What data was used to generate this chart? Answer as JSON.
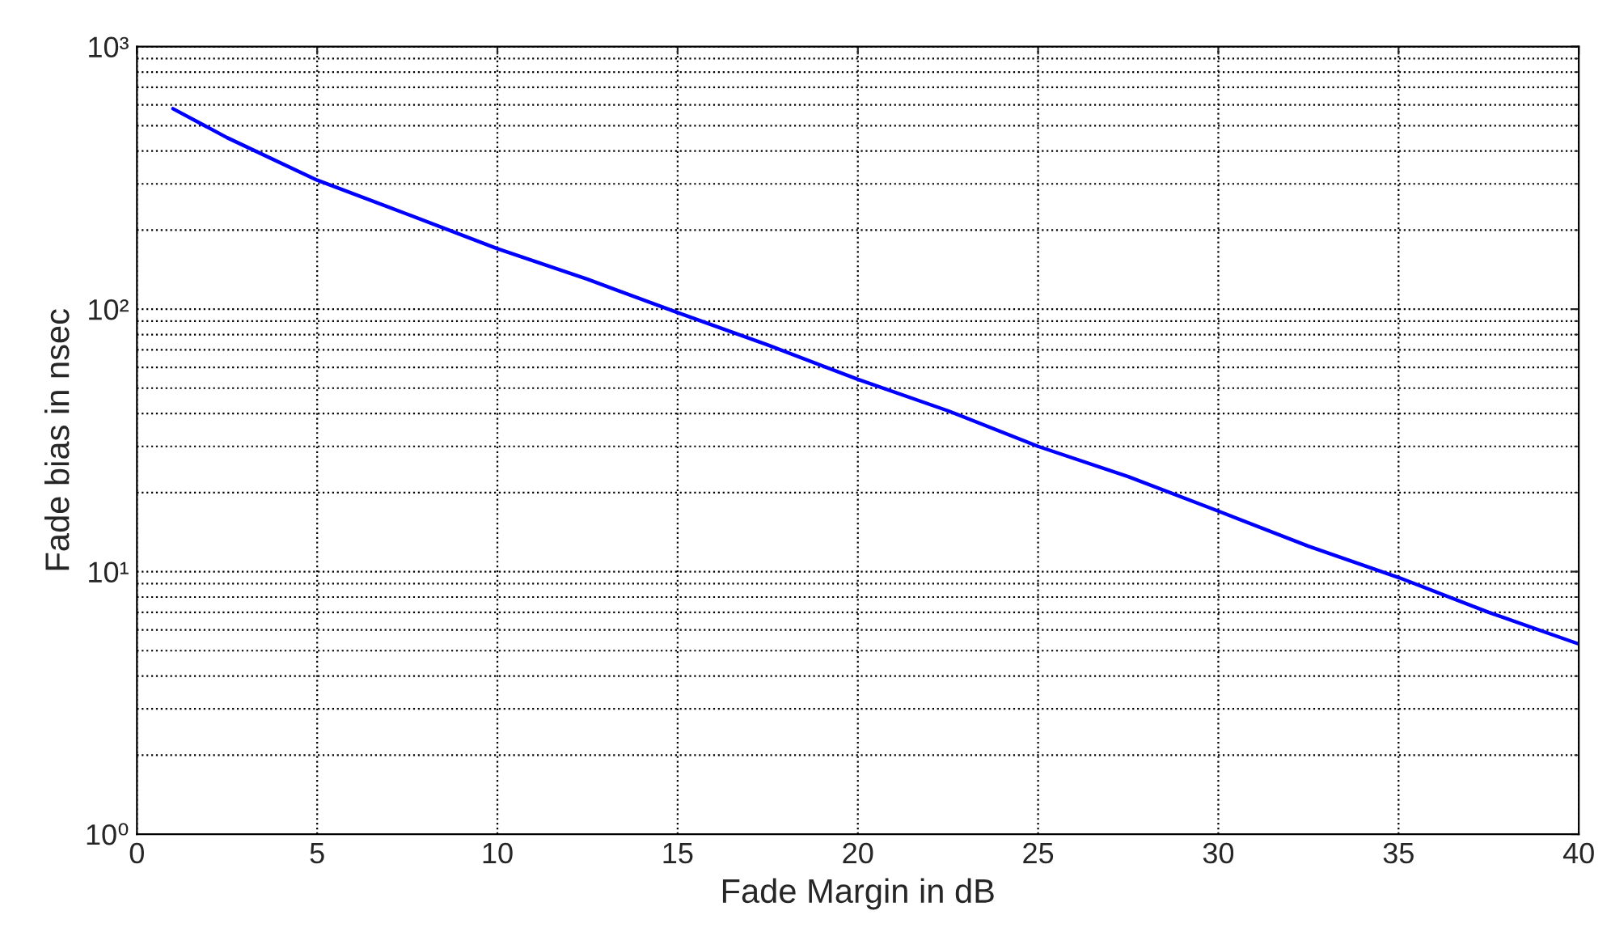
{
  "chart_data": {
    "type": "line",
    "xlabel": "Fade Margin in dB",
    "ylabel": "Fade bias in nsec",
    "x": [
      1,
      2.5,
      5,
      7.5,
      10,
      12.5,
      15,
      17.5,
      20,
      22.5,
      25,
      27.5,
      30,
      32.5,
      35,
      37.5,
      40
    ],
    "series": [
      {
        "color": "#0000ff",
        "values": [
          580,
          450,
          310,
          230,
          170,
          130,
          97,
          73,
          54,
          41,
          30,
          23,
          17,
          12.5,
          9.5,
          7,
          5.3
        ]
      }
    ],
    "log": "y",
    "xlim": [
      0,
      40
    ],
    "ylim": [
      1,
      1000
    ],
    "xticks": [
      0,
      5,
      10,
      15,
      20,
      25,
      30,
      35,
      40
    ],
    "yticks": [
      {
        "value": 1,
        "label": "10⁰"
      },
      {
        "value": 10,
        "label": "10¹"
      },
      {
        "value": 100,
        "label": "10²"
      },
      {
        "value": 1000,
        "label": "10³"
      }
    ],
    "grid": true,
    "line_style": "solid",
    "marker": "none"
  }
}
